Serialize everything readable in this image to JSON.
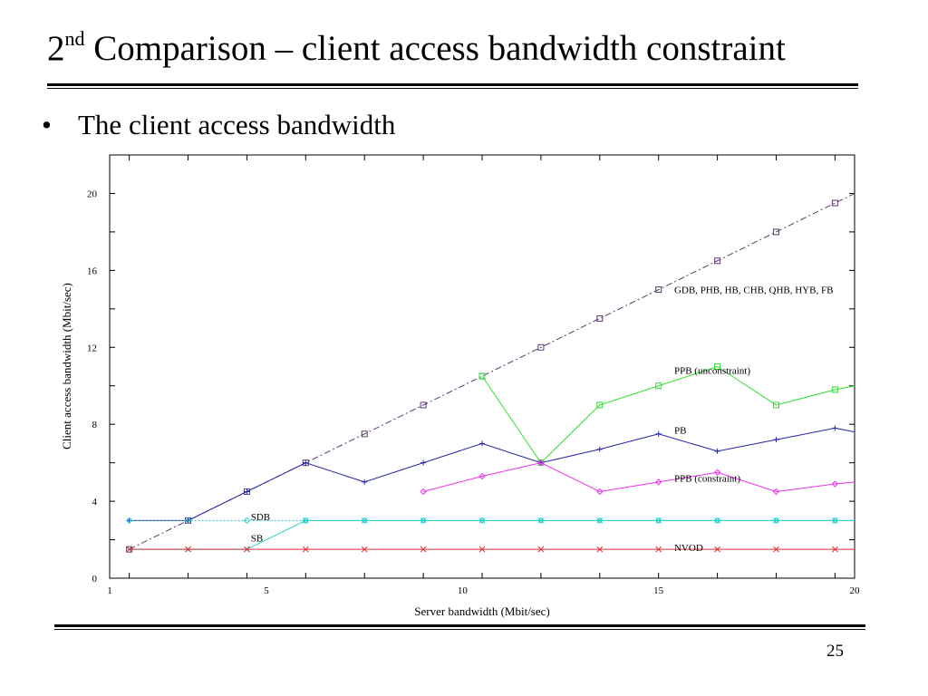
{
  "slide": {
    "title_main": "2",
    "title_sup": "nd",
    "title_rest": " Comparison – client access bandwidth constraint",
    "bullet_mark": "•",
    "bullet_text": "The client access bandwidth",
    "page_number": "25"
  },
  "chart_data": {
    "type": "line",
    "xlabel": "Server bandwidth (Mbit/sec)",
    "ylabel": "Client access bandwidth (Mbit/sec)",
    "xlim": [
      1,
      20
    ],
    "ylim": [
      0,
      22
    ],
    "xticks": [
      1,
      5,
      10,
      15,
      20
    ],
    "yticks": [
      0,
      4,
      8,
      12,
      16,
      20
    ],
    "grid": false,
    "series": [
      {
        "name": "GDB, PHB, HB, CHB, QHB, HYB, FB",
        "color": "#5a3a70",
        "marker": "square",
        "dashed": true,
        "x": [
          1.5,
          3,
          4.5,
          6,
          7.5,
          9,
          10.5,
          12,
          13.5,
          15,
          16.5,
          18,
          19.5,
          20
        ],
        "y": [
          1.5,
          3,
          4.5,
          6,
          7.5,
          9,
          10.5,
          12,
          13.5,
          15,
          16.5,
          18,
          19.5,
          20
        ]
      },
      {
        "name": "PPB (unconstraint)",
        "color": "#33dd33",
        "marker": "square",
        "x": [
          10.5,
          12,
          13.5,
          15,
          16.5,
          18,
          19.5,
          20
        ],
        "y": [
          10.5,
          6,
          9,
          10,
          11,
          9,
          9.8,
          10
        ]
      },
      {
        "name": "PB",
        "color": "#2222aa",
        "marker": "plus",
        "x": [
          1.5,
          3,
          4.5,
          6,
          7.5,
          9,
          10.5,
          12,
          13.5,
          15,
          16.5,
          18,
          19.5,
          20
        ],
        "y": [
          3,
          3,
          4.5,
          6,
          5,
          6,
          7,
          6,
          6.7,
          7.5,
          6.6,
          7.2,
          7.8,
          7.6
        ]
      },
      {
        "name": "PPB (constraint)",
        "color": "#ee33ee",
        "marker": "diamond",
        "x": [
          9,
          10.5,
          12,
          13.5,
          15,
          16.5,
          18,
          19.5,
          20
        ],
        "y": [
          4.5,
          5.3,
          6,
          4.5,
          5,
          5.5,
          4.5,
          4.9,
          5
        ]
      },
      {
        "name": "SDB",
        "color": "#22cccc",
        "marker": "diamond",
        "dotted": true,
        "x": [
          1.5,
          3,
          4.5,
          6,
          7.5,
          9,
          10.5,
          12,
          13.5,
          15,
          16.5,
          18,
          19.5,
          20
        ],
        "y": [
          3,
          3,
          3,
          3,
          3,
          3,
          3,
          3,
          3,
          3,
          3,
          3,
          3,
          3
        ]
      },
      {
        "name": "SB",
        "color": "#22cccc",
        "marker": "x",
        "x": [
          1.5,
          3,
          4.5,
          6,
          7.5,
          9,
          10.5,
          12,
          13.5,
          15,
          16.5,
          18,
          19.5,
          20
        ],
        "y": [
          1.5,
          1.5,
          1.5,
          3,
          3,
          3,
          3,
          3,
          3,
          3,
          3,
          3,
          3,
          3
        ]
      },
      {
        "name": "NVOD",
        "color": "#dd3333",
        "marker": "x",
        "x": [
          1.5,
          3,
          4.5,
          6,
          7.5,
          9,
          10.5,
          12,
          13.5,
          15,
          16.5,
          18,
          19.5,
          20
        ],
        "y": [
          1.5,
          1.5,
          1.5,
          1.5,
          1.5,
          1.5,
          1.5,
          1.5,
          1.5,
          1.5,
          1.5,
          1.5,
          1.5,
          1.5
        ]
      }
    ]
  }
}
